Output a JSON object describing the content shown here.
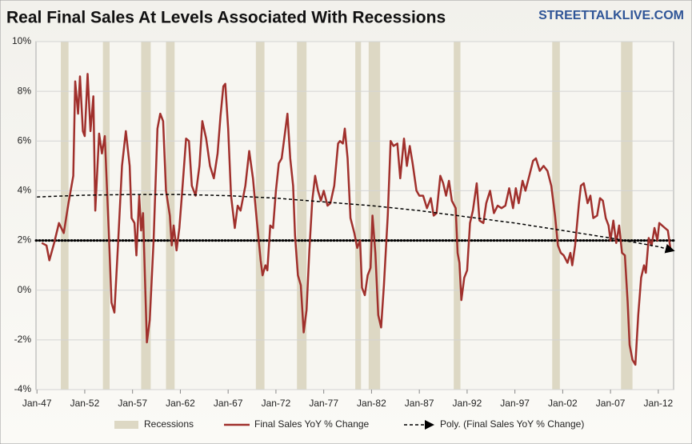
{
  "chart_data": {
    "type": "line",
    "title": "Real Final Sales At Levels Associated With Recessions",
    "source": "STREETTALKLIVE.COM",
    "xlim": [
      1946.9,
      2013.6
    ],
    "xticks": [
      {
        "value": 1947,
        "label": "Jan-47"
      },
      {
        "value": 1952,
        "label": "Jan-52"
      },
      {
        "value": 1957,
        "label": "Jan-57"
      },
      {
        "value": 1962,
        "label": "Jan-62"
      },
      {
        "value": 1967,
        "label": "Jan-67"
      },
      {
        "value": 1972,
        "label": "Jan-72"
      },
      {
        "value": 1977,
        "label": "Jan-77"
      },
      {
        "value": 1982,
        "label": "Jan-82"
      },
      {
        "value": 1987,
        "label": "Jan-87"
      },
      {
        "value": 1992,
        "label": "Jan-92"
      },
      {
        "value": 1997,
        "label": "Jan-97"
      },
      {
        "value": 2002,
        "label": "Jan-02"
      },
      {
        "value": 2007,
        "label": "Jan-07"
      },
      {
        "value": 2012,
        "label": "Jan-12"
      }
    ],
    "ylim": [
      -4,
      10
    ],
    "yticks": [
      {
        "value": -4,
        "label": "-4%"
      },
      {
        "value": -2,
        "label": "-2%"
      },
      {
        "value": 0,
        "label": "0%"
      },
      {
        "value": 2,
        "label": "2%"
      },
      {
        "value": 4,
        "label": "4%"
      },
      {
        "value": 6,
        "label": "6%"
      },
      {
        "value": 8,
        "label": "8%"
      },
      {
        "value": 10,
        "label": "10%"
      }
    ],
    "grid": true,
    "recessions": {
      "name": "Recessions",
      "color": "#ddd8c4",
      "ranges": [
        [
          1949.5,
          1950.3
        ],
        [
          1953.9,
          1954.6
        ],
        [
          1957.9,
          1958.9
        ],
        [
          1960.5,
          1961.4
        ],
        [
          1969.9,
          1970.8
        ],
        [
          1974.2,
          1975.2
        ],
        [
          1980.3,
          1980.9
        ],
        [
          1981.7,
          1982.9
        ],
        [
          1990.6,
          1991.3
        ],
        [
          2000.9,
          2001.7
        ],
        [
          2008.1,
          2009.3
        ]
      ]
    },
    "reference_line": 2,
    "x": [
      1947.5,
      1948,
      1948.3,
      1948.8,
      1949.3,
      1949.8,
      1950.3,
      1950.8,
      1951,
      1951.3,
      1951.5,
      1951.8,
      1952,
      1952.3,
      1952.6,
      1952.9,
      1953.1,
      1953.5,
      1953.8,
      1954.1,
      1954.5,
      1954.8,
      1955.1,
      1955.5,
      1955.9,
      1956.3,
      1956.7,
      1956.9,
      1957.2,
      1957.4,
      1957.7,
      1957.9,
      1958.1,
      1958.5,
      1958.8,
      1959.2,
      1959.6,
      1959.9,
      1960.2,
      1960.5,
      1960.9,
      1961.1,
      1961.3,
      1961.6,
      1961.9,
      1962.2,
      1962.6,
      1962.9,
      1963.2,
      1963.6,
      1964,
      1964.3,
      1964.7,
      1965.1,
      1965.5,
      1965.9,
      1966.2,
      1966.5,
      1966.7,
      1967,
      1967.3,
      1967.7,
      1968,
      1968.3,
      1968.8,
      1969.2,
      1969.6,
      1970,
      1970.4,
      1970.6,
      1970.9,
      1971.1,
      1971.4,
      1971.7,
      1972,
      1972.3,
      1972.6,
      1973,
      1973.2,
      1973.5,
      1973.8,
      1974,
      1974.3,
      1974.6,
      1974.9,
      1975.2,
      1975.5,
      1975.8,
      1976.1,
      1976.4,
      1976.7,
      1977,
      1977.4,
      1977.7,
      1978.1,
      1978.5,
      1978.7,
      1979,
      1979.2,
      1979.5,
      1979.8,
      1980.2,
      1980.5,
      1980.8,
      1981,
      1981.3,
      1981.6,
      1981.9,
      1982.1,
      1982.4,
      1982.7,
      1983,
      1983.3,
      1983.7,
      1984,
      1984.3,
      1984.7,
      1985,
      1985.4,
      1985.7,
      1986,
      1986.3,
      1986.7,
      1987,
      1987.4,
      1987.8,
      1988.2,
      1988.5,
      1988.8,
      1989.2,
      1989.5,
      1989.8,
      1990.1,
      1990.4,
      1990.8,
      1991,
      1991.2,
      1991.4,
      1991.7,
      1992,
      1992.3,
      1992.6,
      1993,
      1993.3,
      1993.7,
      1994,
      1994.4,
      1994.8,
      1995.2,
      1995.6,
      1996,
      1996.4,
      1996.8,
      1997.1,
      1997.4,
      1997.8,
      1998.1,
      1998.5,
      1998.9,
      1999.2,
      1999.6,
      2000,
      2000.4,
      2000.8,
      2001.2,
      2001.5,
      2001.8,
      2002.1,
      2002.5,
      2002.8,
      2003,
      2003.3,
      2003.7,
      2003.9,
      2004.2,
      2004.6,
      2004.9,
      2005.2,
      2005.6,
      2005.9,
      2006.2,
      2006.5,
      2006.8,
      2007,
      2007.3,
      2007.6,
      2007.9,
      2008.2,
      2008.5,
      2008.8,
      2009,
      2009.3,
      2009.6,
      2009.9,
      2010.2,
      2010.5,
      2010.7,
      2011,
      2011.3,
      2011.6,
      2011.9,
      2012.1,
      2012.4,
      2012.7,
      2013,
      2013.3
    ],
    "series": [
      {
        "name": "Final Sales YoY % Change",
        "color": "#a0302c",
        "values": [
          1.9,
          1.8,
          1.2,
          1.9,
          2.7,
          2.3,
          3.5,
          4.6,
          8.4,
          7.1,
          8.6,
          6.4,
          6.2,
          8.7,
          6.4,
          7.8,
          3.2,
          6.3,
          5.5,
          6.2,
          2.5,
          -0.5,
          -0.9,
          2.0,
          5.0,
          6.4,
          5.0,
          2.9,
          2.7,
          1.4,
          3.8,
          2.4,
          3.1,
          -2.1,
          -1.2,
          2.0,
          6.5,
          7.1,
          6.8,
          4.0,
          3.0,
          1.8,
          2.6,
          1.6,
          2.5,
          4.0,
          6.1,
          6.0,
          4.2,
          3.8,
          5.0,
          6.8,
          6.1,
          5.0,
          4.5,
          5.5,
          7.0,
          8.2,
          8.3,
          6.5,
          3.8,
          2.5,
          3.4,
          3.2,
          4.2,
          5.6,
          4.5,
          2.8,
          1.2,
          0.6,
          1.0,
          0.8,
          2.6,
          2.5,
          4.0,
          5.1,
          5.3,
          6.5,
          7.1,
          5.3,
          4.2,
          2.2,
          0.6,
          0.2,
          -1.7,
          -0.8,
          1.6,
          3.6,
          4.6,
          4.0,
          3.6,
          4.0,
          3.4,
          3.5,
          4.2,
          5.9,
          6.0,
          5.9,
          6.5,
          5.3,
          2.9,
          2.3,
          1.7,
          2.0,
          0.1,
          -0.2,
          0.6,
          0.9,
          3.0,
          1.5,
          -1.0,
          -1.5,
          0.2,
          3.0,
          6.0,
          5.8,
          5.9,
          4.5,
          6.1,
          5.0,
          5.8,
          5.1,
          4.0,
          3.8,
          3.8,
          3.3,
          3.7,
          3.0,
          3.1,
          4.6,
          4.3,
          3.8,
          4.4,
          3.6,
          3.3,
          1.5,
          1.1,
          -0.4,
          0.5,
          0.8,
          2.7,
          3.2,
          4.3,
          2.8,
          2.7,
          3.5,
          4.0,
          3.1,
          3.4,
          3.3,
          3.4,
          4.1,
          3.3,
          4.1,
          3.5,
          4.4,
          4.0,
          4.6,
          5.2,
          5.3,
          4.8,
          5.0,
          4.8,
          4.2,
          3.0,
          1.8,
          1.5,
          1.4,
          1.1,
          1.5,
          1.0,
          1.8,
          3.5,
          4.2,
          4.3,
          3.5,
          3.8,
          2.9,
          3.0,
          3.7,
          3.6,
          2.9,
          2.6,
          2.0,
          2.8,
          1.9,
          2.6,
          1.5,
          1.4,
          -0.5,
          -2.2,
          -2.8,
          -3.0,
          -1.0,
          0.5,
          1.0,
          0.7,
          2.1,
          1.8,
          2.5,
          2.0,
          2.7,
          2.6,
          2.5,
          2.4,
          1.6
        ]
      }
    ],
    "trend": {
      "name": "Poly. (Final Sales YoY % Change)",
      "color": "#000000",
      "x": [
        1947,
        1952,
        1957,
        1962,
        1967,
        1972,
        1977,
        1982,
        1987,
        1992,
        1997,
        2002,
        2007,
        2012,
        2013.5
      ],
      "values": [
        3.75,
        3.82,
        3.85,
        3.85,
        3.8,
        3.7,
        3.55,
        3.4,
        3.2,
        2.95,
        2.7,
        2.4,
        2.1,
        1.75,
        1.6
      ]
    }
  }
}
